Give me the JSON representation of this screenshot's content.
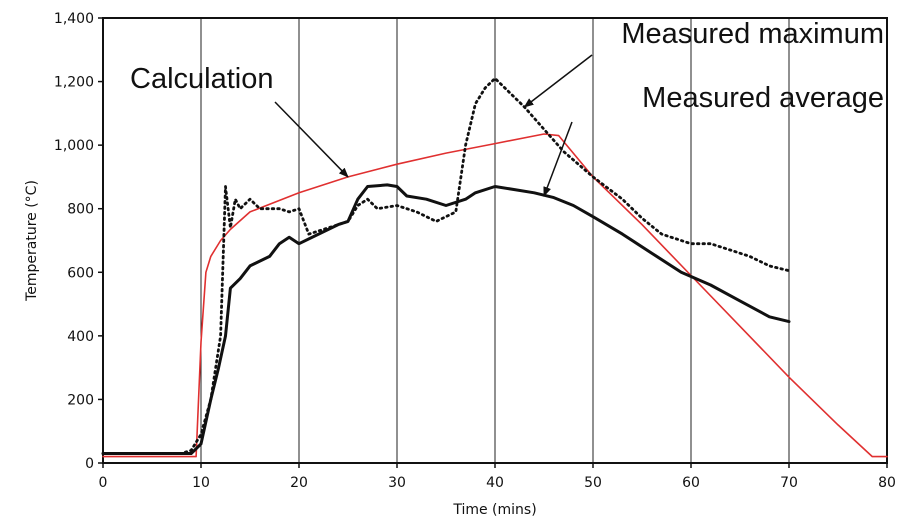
{
  "chart_data": {
    "type": "line",
    "xlabel": "Time (mins)",
    "ylabel": "Temperature (°C)",
    "xlim": [
      0,
      80
    ],
    "ylim": [
      0,
      1400
    ],
    "x_ticks": [
      "0",
      "10",
      "20",
      "30",
      "40",
      "50",
      "60",
      "70",
      "80"
    ],
    "y_ticks": [
      "0",
      "200",
      "400",
      "600",
      "800",
      "1,000",
      "1,200",
      "1,400"
    ],
    "grid": "vertical",
    "series": [
      {
        "name": "Calculation",
        "color": "#e03030",
        "style": "solid",
        "points": [
          [
            0,
            20
          ],
          [
            9.5,
            20
          ],
          [
            10,
            380
          ],
          [
            10.5,
            600
          ],
          [
            11,
            650
          ],
          [
            12,
            700
          ],
          [
            13,
            735
          ],
          [
            15,
            790
          ],
          [
            20,
            850
          ],
          [
            25,
            900
          ],
          [
            30,
            940
          ],
          [
            35,
            975
          ],
          [
            40,
            1005
          ],
          [
            45,
            1035
          ],
          [
            46.5,
            1030
          ],
          [
            50,
            900
          ],
          [
            55,
            750
          ],
          [
            60,
            590
          ],
          [
            65,
            430
          ],
          [
            70,
            270
          ],
          [
            75,
            120
          ],
          [
            78.5,
            20
          ],
          [
            80,
            20
          ]
        ]
      },
      {
        "name": "Measured average",
        "color": "#111111",
        "style": "solid",
        "points": [
          [
            0,
            30
          ],
          [
            9,
            30
          ],
          [
            10,
            60
          ],
          [
            11,
            200
          ],
          [
            11.8,
            300
          ],
          [
            12.5,
            400
          ],
          [
            13,
            550
          ],
          [
            14,
            580
          ],
          [
            15,
            620
          ],
          [
            17,
            650
          ],
          [
            18,
            690
          ],
          [
            19,
            710
          ],
          [
            20,
            690
          ],
          [
            22,
            720
          ],
          [
            24,
            750
          ],
          [
            25,
            760
          ],
          [
            26,
            830
          ],
          [
            27,
            870
          ],
          [
            29,
            875
          ],
          [
            30,
            870
          ],
          [
            31,
            840
          ],
          [
            33,
            830
          ],
          [
            35,
            810
          ],
          [
            37,
            830
          ],
          [
            38,
            850
          ],
          [
            40,
            870
          ],
          [
            42,
            860
          ],
          [
            44,
            850
          ],
          [
            46,
            835
          ],
          [
            48,
            810
          ],
          [
            50,
            775
          ],
          [
            53,
            720
          ],
          [
            56,
            660
          ],
          [
            59,
            600
          ],
          [
            62,
            560
          ],
          [
            65,
            510
          ],
          [
            68,
            460
          ],
          [
            70,
            445
          ]
        ]
      },
      {
        "name": "Measured maximum",
        "color": "#111111",
        "style": "dotted",
        "points": [
          [
            0,
            30
          ],
          [
            8,
            30
          ],
          [
            9,
            40
          ],
          [
            10,
            90
          ],
          [
            11,
            200
          ],
          [
            12,
            400
          ],
          [
            12.5,
            870
          ],
          [
            13,
            740
          ],
          [
            13.5,
            830
          ],
          [
            14,
            800
          ],
          [
            15,
            830
          ],
          [
            16,
            800
          ],
          [
            18,
            800
          ],
          [
            19,
            790
          ],
          [
            20,
            800
          ],
          [
            21,
            720
          ],
          [
            23,
            740
          ],
          [
            25,
            760
          ],
          [
            26,
            810
          ],
          [
            27,
            830
          ],
          [
            28,
            800
          ],
          [
            30,
            810
          ],
          [
            32,
            790
          ],
          [
            34,
            760
          ],
          [
            36,
            790
          ],
          [
            37,
            1000
          ],
          [
            38,
            1130
          ],
          [
            39,
            1180
          ],
          [
            40,
            1210
          ],
          [
            41,
            1180
          ],
          [
            43,
            1120
          ],
          [
            45,
            1050
          ],
          [
            47,
            980
          ],
          [
            50,
            900
          ],
          [
            53,
            830
          ],
          [
            55,
            770
          ],
          [
            57,
            720
          ],
          [
            60,
            690
          ],
          [
            62,
            690
          ],
          [
            64,
            670
          ],
          [
            66,
            650
          ],
          [
            68,
            620
          ],
          [
            70,
            605
          ]
        ]
      }
    ],
    "annotations": [
      {
        "text": "Calculation",
        "arrow_to": [
          25,
          900
        ]
      },
      {
        "text": "Measured maximum",
        "arrow_to": [
          43,
          1120
        ]
      },
      {
        "text": "Measured average",
        "arrow_to": [
          45,
          840
        ]
      }
    ]
  }
}
